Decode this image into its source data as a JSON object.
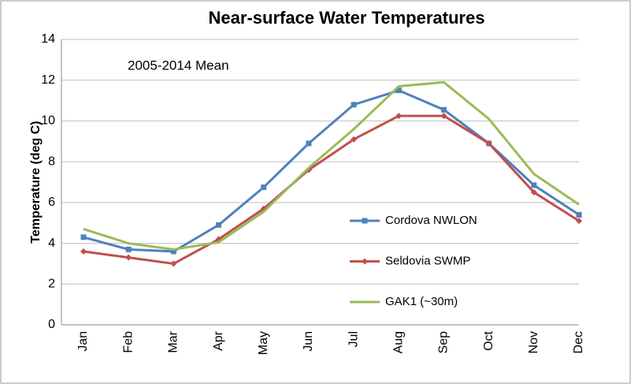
{
  "chart_data": {
    "type": "line",
    "title": "Near-surface Water Temperatures",
    "annotation": "2005-2014 Mean",
    "y_label": "Temperature (deg C)",
    "categories": [
      "Jan",
      "Feb",
      "Mar",
      "Apr",
      "May",
      "Jun",
      "Jul",
      "Aug",
      "Sep",
      "Oct",
      "Nov",
      "Dec"
    ],
    "series": [
      {
        "name": "Cordova NWLON",
        "color": "#4f81bd",
        "marker": "square",
        "values": [
          4.3,
          3.7,
          3.6,
          4.9,
          6.75,
          8.9,
          10.8,
          11.5,
          10.55,
          8.9,
          6.85,
          5.4
        ]
      },
      {
        "name": "Seldovia SWMP",
        "color": "#c0504d",
        "marker": "diamond",
        "values": [
          3.6,
          3.3,
          3.0,
          4.2,
          5.7,
          7.6,
          9.1,
          10.25,
          10.25,
          8.9,
          6.5,
          5.1
        ]
      },
      {
        "name": "GAK1 (~30m)",
        "color": "#9bbb59",
        "marker": "none",
        "values": [
          4.7,
          4.0,
          3.7,
          4.05,
          5.55,
          7.7,
          9.6,
          11.7,
          11.9,
          10.1,
          7.4,
          5.9
        ]
      }
    ],
    "ylim": [
      0,
      14
    ],
    "yticks": [
      0,
      2,
      4,
      6,
      8,
      10,
      12,
      14
    ],
    "grid": true
  }
}
